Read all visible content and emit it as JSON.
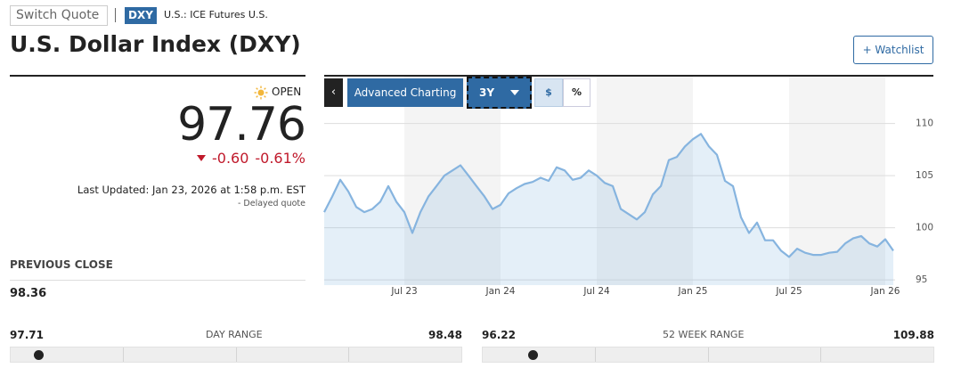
{
  "header": {
    "search_placeholder": "Switch Quote",
    "symbol": "DXY",
    "exchange": "U.S.: ICE Futures U.S.",
    "title": "U.S. Dollar Index (DXY)",
    "watchlist_button": "+ Watchlist"
  },
  "quote": {
    "status": "OPEN",
    "price": "97.76",
    "change": "-0.60",
    "change_percent": "-0.61%",
    "last_updated": "Last Updated: Jan 23, 2026 at 1:58 p.m. EST",
    "delayed": "- Delayed quote"
  },
  "previous_close": {
    "label": "PREVIOUS CLOSE",
    "value": "98.36"
  },
  "toolbar": {
    "advanced": "Advanced Charting",
    "range": "3Y",
    "dollar": "$",
    "percent": "%"
  },
  "day_range": {
    "label": "DAY RANGE",
    "low": "97.71",
    "high": "98.48"
  },
  "week52_range": {
    "label": "52 WEEK RANGE",
    "low": "96.22",
    "high": "109.88"
  },
  "chart_data": {
    "type": "area",
    "categories": [
      null,
      null,
      null,
      null,
      null,
      null,
      null,
      null,
      null,
      null,
      "Jul 23",
      null,
      null,
      null,
      null,
      null,
      null,
      null,
      null,
      null,
      null,
      null,
      "Jan 24",
      null,
      null,
      null,
      null,
      null,
      null,
      null,
      null,
      null,
      null,
      null,
      "Jul 24",
      null,
      null,
      null,
      null,
      null,
      null,
      null,
      null,
      null,
      null,
      null,
      "Jan 25",
      null,
      null,
      null,
      null,
      null,
      null,
      null,
      null,
      null,
      null,
      null,
      "Jul 25",
      null,
      null,
      null,
      null,
      null,
      null,
      null,
      null,
      null,
      null,
      null,
      "Jan 26",
      null
    ],
    "values": [
      101.5,
      103.0,
      104.6,
      103.5,
      102.0,
      101.5,
      101.8,
      102.5,
      104.0,
      102.5,
      101.5,
      99.5,
      101.5,
      103.0,
      104.0,
      105.0,
      105.5,
      106.0,
      105.0,
      104.0,
      103.0,
      101.8,
      102.2,
      103.3,
      103.8,
      104.2,
      104.4,
      104.8,
      104.5,
      105.8,
      105.5,
      104.6,
      104.8,
      105.5,
      105.0,
      104.3,
      104.0,
      101.8,
      101.3,
      100.8,
      101.5,
      103.2,
      104.0,
      106.5,
      106.8,
      107.8,
      108.5,
      109.0,
      107.8,
      107.0,
      104.5,
      104.0,
      101.0,
      99.5,
      100.5,
      98.8,
      98.8,
      97.8,
      97.2,
      98.0,
      97.6,
      97.4,
      97.4,
      97.6,
      97.7,
      98.5,
      99.0,
      99.2,
      98.5,
      98.2,
      98.9,
      97.8
    ],
    "color": "#86b4df",
    "ylim": [
      94.5,
      114.5
    ],
    "yticks": [
      95,
      100,
      105,
      110
    ],
    "grid": true
  }
}
